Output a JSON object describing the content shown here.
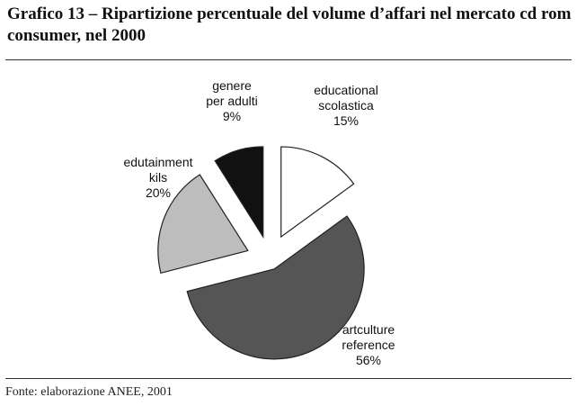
{
  "chart_data": {
    "type": "pie",
    "title": "Grafico 13 – Ripartizione percentuale del volume d’affari nel mercato cd rom consumer, nel 2000",
    "categories": [
      "educational\nscolastica",
      "artculture\nreference",
      "edutainment\nkils",
      "genere\nper adulti"
    ],
    "values": [
      15,
      56,
      20,
      9
    ],
    "value_labels": [
      "15%",
      "56%",
      "20%",
      "9%"
    ],
    "colors": [
      "#ffffff",
      "#555555",
      "#bdbdbd",
      "#111111"
    ],
    "source": "Fonte: elaborazione ANEE, 2001"
  }
}
